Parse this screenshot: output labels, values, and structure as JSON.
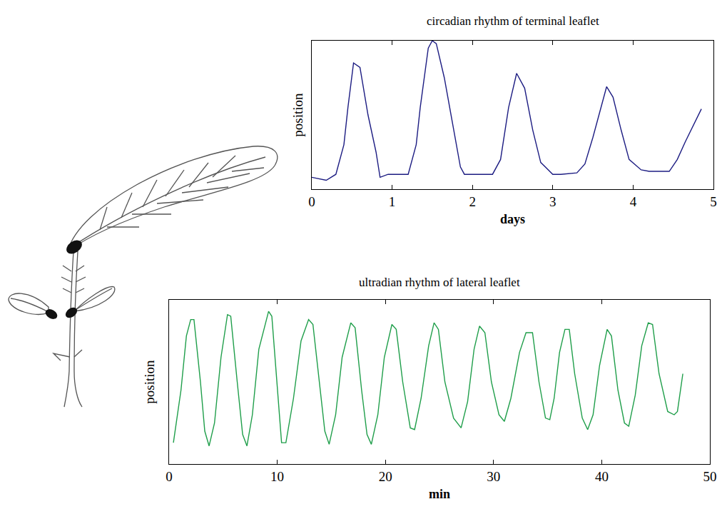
{
  "chart_data": [
    {
      "type": "line",
      "title": "circadian rhythm of terminal leaflet",
      "xlabel": "days",
      "ylabel": "position",
      "x": [
        0,
        0.18,
        0.3,
        0.4,
        0.45,
        0.52,
        0.6,
        0.7,
        0.8,
        0.85,
        0.95,
        1.2,
        1.3,
        1.35,
        1.45,
        1.5,
        1.55,
        1.65,
        1.75,
        1.85,
        1.9,
        2.0,
        2.25,
        2.35,
        2.45,
        2.55,
        2.65,
        2.75,
        2.85,
        3.0,
        3.1,
        3.3,
        3.4,
        3.5,
        3.6,
        3.67,
        3.75,
        3.85,
        3.95,
        4.1,
        4.2,
        4.45,
        4.55,
        4.65,
        4.85
      ],
      "values": [
        0.08,
        0.06,
        0.1,
        0.3,
        0.55,
        0.85,
        0.82,
        0.5,
        0.25,
        0.08,
        0.1,
        0.1,
        0.3,
        0.55,
        0.95,
        1.0,
        0.98,
        0.75,
        0.45,
        0.15,
        0.1,
        0.1,
        0.1,
        0.2,
        0.55,
        0.78,
        0.68,
        0.4,
        0.18,
        0.1,
        0.1,
        0.11,
        0.17,
        0.35,
        0.55,
        0.69,
        0.62,
        0.4,
        0.2,
        0.13,
        0.12,
        0.12,
        0.2,
        0.32,
        0.54
      ],
      "color": "#1c1c82",
      "xlim": [
        0,
        5
      ],
      "xticks": [
        0,
        1,
        2,
        3,
        4,
        5
      ],
      "ylim": [
        0,
        1
      ],
      "tick_labels": "x",
      "grid": false
    },
    {
      "type": "line",
      "title": "ultradian rhythm of lateral leaflet",
      "xlabel": "min",
      "ylabel": "position",
      "x": [
        0.4,
        1.1,
        1.6,
        2.0,
        2.3,
        2.9,
        3.3,
        3.7,
        4.2,
        4.8,
        5.4,
        5.7,
        6.3,
        6.8,
        7.2,
        7.7,
        8.3,
        9.2,
        9.5,
        10.0,
        10.4,
        10.8,
        11.5,
        12.2,
        12.9,
        13.3,
        13.9,
        14.4,
        14.8,
        15.4,
        16.0,
        16.8,
        17.2,
        17.8,
        18.3,
        18.7,
        19.3,
        19.9,
        20.6,
        21.0,
        21.6,
        22.3,
        22.7,
        23.3,
        24.0,
        24.5,
        24.9,
        25.5,
        26.3,
        27.0,
        27.6,
        28.2,
        28.7,
        29.2,
        29.8,
        30.5,
        31.0,
        31.6,
        32.4,
        33.0,
        33.6,
        34.2,
        34.8,
        35.2,
        35.6,
        36.1,
        36.6,
        37.0,
        37.5,
        38.2,
        38.7,
        39.2,
        39.8,
        40.5,
        40.9,
        41.5,
        42.1,
        42.5,
        43.1,
        43.7,
        44.3,
        44.7,
        45.3,
        46.1,
        46.7,
        47.0,
        47.5
      ],
      "values": [
        0.13,
        0.45,
        0.78,
        0.88,
        0.88,
        0.5,
        0.2,
        0.11,
        0.25,
        0.65,
        0.91,
        0.9,
        0.5,
        0.18,
        0.11,
        0.3,
        0.7,
        0.93,
        0.9,
        0.45,
        0.13,
        0.13,
        0.4,
        0.75,
        0.88,
        0.85,
        0.5,
        0.2,
        0.12,
        0.3,
        0.65,
        0.86,
        0.83,
        0.45,
        0.18,
        0.12,
        0.3,
        0.65,
        0.85,
        0.82,
        0.5,
        0.22,
        0.21,
        0.4,
        0.72,
        0.86,
        0.82,
        0.5,
        0.28,
        0.22,
        0.38,
        0.7,
        0.84,
        0.8,
        0.5,
        0.3,
        0.26,
        0.4,
        0.68,
        0.8,
        0.8,
        0.5,
        0.28,
        0.27,
        0.4,
        0.68,
        0.82,
        0.82,
        0.55,
        0.28,
        0.21,
        0.3,
        0.6,
        0.82,
        0.78,
        0.45,
        0.25,
        0.23,
        0.42,
        0.72,
        0.86,
        0.85,
        0.55,
        0.32,
        0.3,
        0.32,
        0.55
      ],
      "color": "#1f9e4a",
      "xlim": [
        0,
        50
      ],
      "xticks": [
        0,
        10,
        20,
        30,
        40,
        50
      ],
      "ylim": [
        0,
        1
      ],
      "tick_labels": "x",
      "grid": false
    }
  ]
}
